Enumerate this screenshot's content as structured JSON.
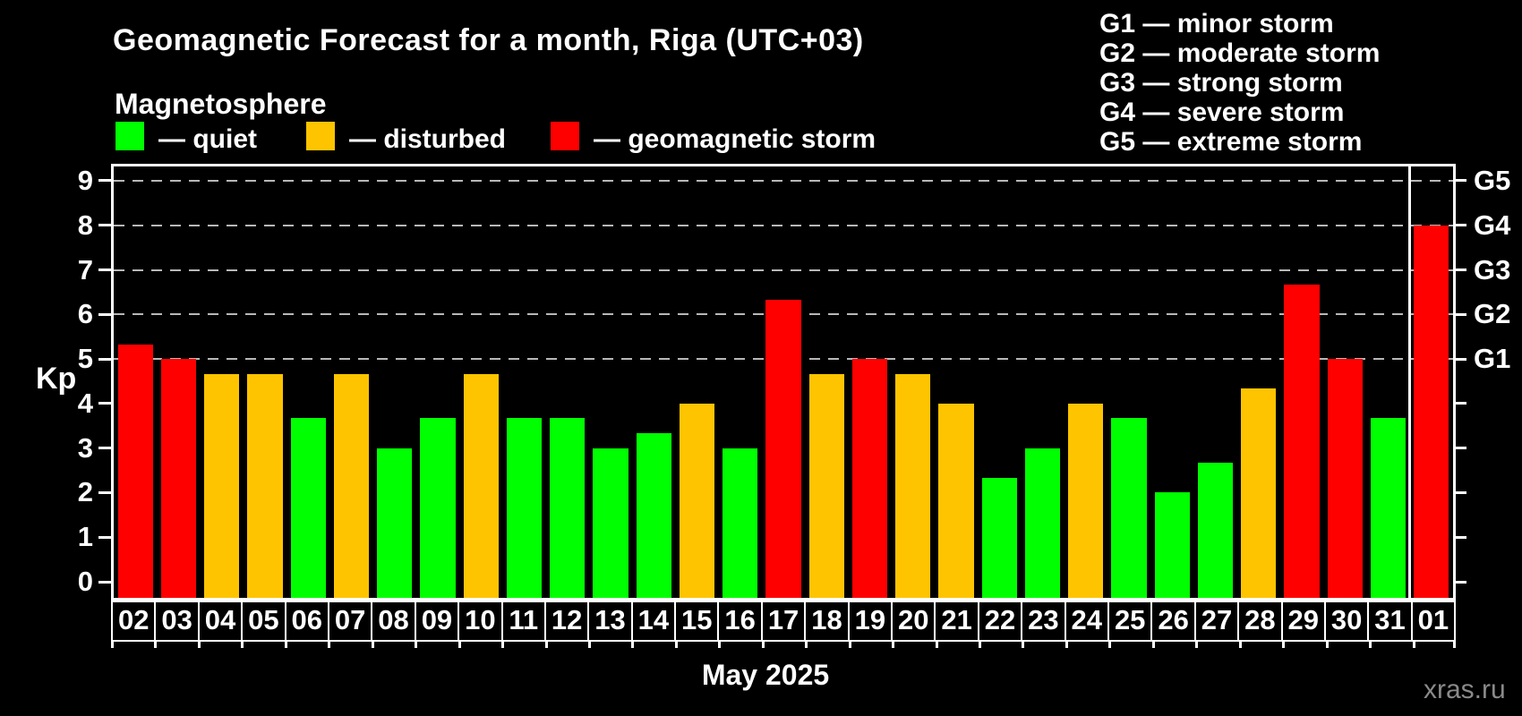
{
  "title": "Geomagnetic Forecast for a month, Riga (UTC+03)",
  "subtitle": "Magnetosphere",
  "legend": {
    "items": [
      {
        "key": "quiet",
        "label": "— quiet"
      },
      {
        "key": "disturbed",
        "label": "— disturbed"
      },
      {
        "key": "storm",
        "label": "— geomagnetic storm"
      }
    ]
  },
  "storm_scale_legend": {
    "lines": [
      "G1 — minor storm",
      "G2 — moderate storm",
      "G3 — strong storm",
      "G4 — severe storm",
      "G5 — extreme storm"
    ]
  },
  "y_axis": {
    "label": "Kp",
    "ticks": [
      0,
      1,
      2,
      3,
      4,
      5,
      6,
      7,
      8,
      9
    ]
  },
  "right_axis": {
    "labels": [
      {
        "kp": 5,
        "label": "G1"
      },
      {
        "kp": 6,
        "label": "G2"
      },
      {
        "kp": 7,
        "label": "G3"
      },
      {
        "kp": 8,
        "label": "G4"
      },
      {
        "kp": 9,
        "label": "G5"
      }
    ]
  },
  "x_axis": {
    "label": "May 2025"
  },
  "watermark": "xras.ru",
  "colors": {
    "quiet": "#00ff00",
    "disturbed": "#ffc400",
    "storm": "#ff0000",
    "grid": "#b8b8b8",
    "frame": "#ffffff",
    "background": "#000000",
    "watermark": "#8a8a8a"
  },
  "chart_data": {
    "type": "bar",
    "title": "Geomagnetic Forecast for a month, Riga (UTC+03)",
    "xlabel": "May 2025",
    "ylabel": "Kp",
    "ylim": [
      0,
      9
    ],
    "grid": "dashed horizontal lines at storm levels only",
    "gridlines_at": [
      5,
      6,
      7,
      8,
      9
    ],
    "legend_position": "top",
    "month_separator_after_index": 29,
    "categories": [
      "02",
      "03",
      "04",
      "05",
      "06",
      "07",
      "08",
      "09",
      "10",
      "11",
      "12",
      "13",
      "14",
      "15",
      "16",
      "17",
      "18",
      "19",
      "20",
      "21",
      "22",
      "23",
      "24",
      "25",
      "26",
      "27",
      "28",
      "29",
      "30",
      "31",
      "01"
    ],
    "days": [
      {
        "date": "02",
        "kp": 5.33,
        "level": "storm"
      },
      {
        "date": "03",
        "kp": 5.0,
        "level": "storm"
      },
      {
        "date": "04",
        "kp": 4.67,
        "level": "disturbed"
      },
      {
        "date": "05",
        "kp": 4.67,
        "level": "disturbed"
      },
      {
        "date": "06",
        "kp": 3.67,
        "level": "quiet"
      },
      {
        "date": "07",
        "kp": 4.67,
        "level": "disturbed"
      },
      {
        "date": "08",
        "kp": 3.0,
        "level": "quiet"
      },
      {
        "date": "09",
        "kp": 3.67,
        "level": "quiet"
      },
      {
        "date": "10",
        "kp": 4.67,
        "level": "disturbed"
      },
      {
        "date": "11",
        "kp": 3.67,
        "level": "quiet"
      },
      {
        "date": "12",
        "kp": 3.67,
        "level": "quiet"
      },
      {
        "date": "13",
        "kp": 3.0,
        "level": "quiet"
      },
      {
        "date": "14",
        "kp": 3.33,
        "level": "quiet"
      },
      {
        "date": "15",
        "kp": 4.0,
        "level": "disturbed"
      },
      {
        "date": "16",
        "kp": 3.0,
        "level": "quiet"
      },
      {
        "date": "17",
        "kp": 6.33,
        "level": "storm"
      },
      {
        "date": "18",
        "kp": 4.67,
        "level": "disturbed"
      },
      {
        "date": "19",
        "kp": 5.0,
        "level": "storm"
      },
      {
        "date": "20",
        "kp": 4.67,
        "level": "disturbed"
      },
      {
        "date": "21",
        "kp": 4.0,
        "level": "disturbed"
      },
      {
        "date": "22",
        "kp": 2.33,
        "level": "quiet"
      },
      {
        "date": "23",
        "kp": 3.0,
        "level": "quiet"
      },
      {
        "date": "24",
        "kp": 4.0,
        "level": "disturbed"
      },
      {
        "date": "25",
        "kp": 3.67,
        "level": "quiet"
      },
      {
        "date": "26",
        "kp": 2.0,
        "level": "quiet"
      },
      {
        "date": "27",
        "kp": 2.67,
        "level": "quiet"
      },
      {
        "date": "28",
        "kp": 4.33,
        "level": "disturbed"
      },
      {
        "date": "29",
        "kp": 6.67,
        "level": "storm"
      },
      {
        "date": "30",
        "kp": 5.0,
        "level": "storm"
      },
      {
        "date": "31",
        "kp": 3.67,
        "level": "quiet"
      },
      {
        "date": "01",
        "kp": 8.0,
        "level": "storm"
      }
    ]
  }
}
